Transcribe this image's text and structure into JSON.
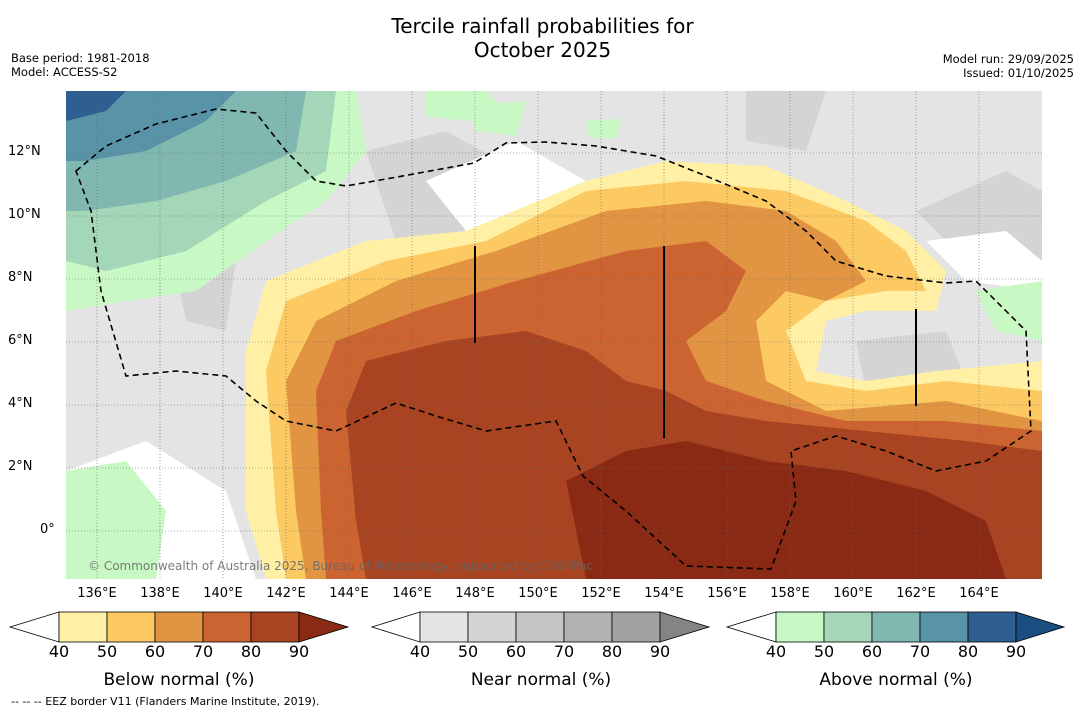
{
  "title_line1": "Tercile rainfall probabilities for",
  "title_line2": "October 2025",
  "meta_left": {
    "base_period": "Base period: 1981-2018",
    "model": "Model: ACCESS-S2"
  },
  "meta_right": {
    "model_run": "Model run: 29/09/2025",
    "issued": "Issued: 01/10/2025"
  },
  "lat_ticks": [
    "12°N",
    "10°N",
    "8°N",
    "6°N",
    "4°N",
    "2°N",
    "0°"
  ],
  "lon_ticks": [
    "136°E",
    "138°E",
    "140°E",
    "142°E",
    "144°E",
    "146°E",
    "148°E",
    "150°E",
    "152°E",
    "154°E",
    "156°E",
    "158°E",
    "160°E",
    "162°E",
    "164°E"
  ],
  "copyright": "© Commonwealth of Australia 2025, Bureau of Meteorology, supported by COSPPac",
  "footer": "--  --  -- EEZ border V11 (Flanders Marine Institute, 2019).",
  "colorbars": [
    {
      "label": "Below normal (%)",
      "ticks": [
        "40",
        "50",
        "60",
        "70",
        "80",
        "90"
      ],
      "colors": [
        "#fff0a6",
        "#fcc962",
        "#e19442",
        "#cb6430",
        "#a84422",
        "#8a2a14"
      ]
    },
    {
      "label": "Near normal (%)",
      "ticks": [
        "40",
        "50",
        "60",
        "70",
        "80",
        "90"
      ],
      "colors": [
        "#e4e4e4",
        "#d4d4d4",
        "#c5c5c5",
        "#b2b2b2",
        "#a1a1a1",
        "#848484"
      ]
    },
    {
      "label": "Above normal (%)",
      "ticks": [
        "40",
        "50",
        "60",
        "70",
        "80",
        "90"
      ],
      "colors": [
        "#c8f8c4",
        "#a3d7b7",
        "#80b7b0",
        "#5893a8",
        "#2f5f90",
        "#1a4d80"
      ]
    }
  ],
  "colors": {
    "below_50_60": "#fcc962",
    "below_60_70": "#e19442",
    "below_70_80": "#cb6430",
    "below_80_90": "#a84422",
    "below_90": "#8a2a14",
    "near_40": "#e4e4e4",
    "near_50": "#d4d4d4",
    "above_40": "#c8f8c4",
    "above_50": "#a3d7b7",
    "above_60": "#80b7b0",
    "above_70": "#5893a8"
  }
}
